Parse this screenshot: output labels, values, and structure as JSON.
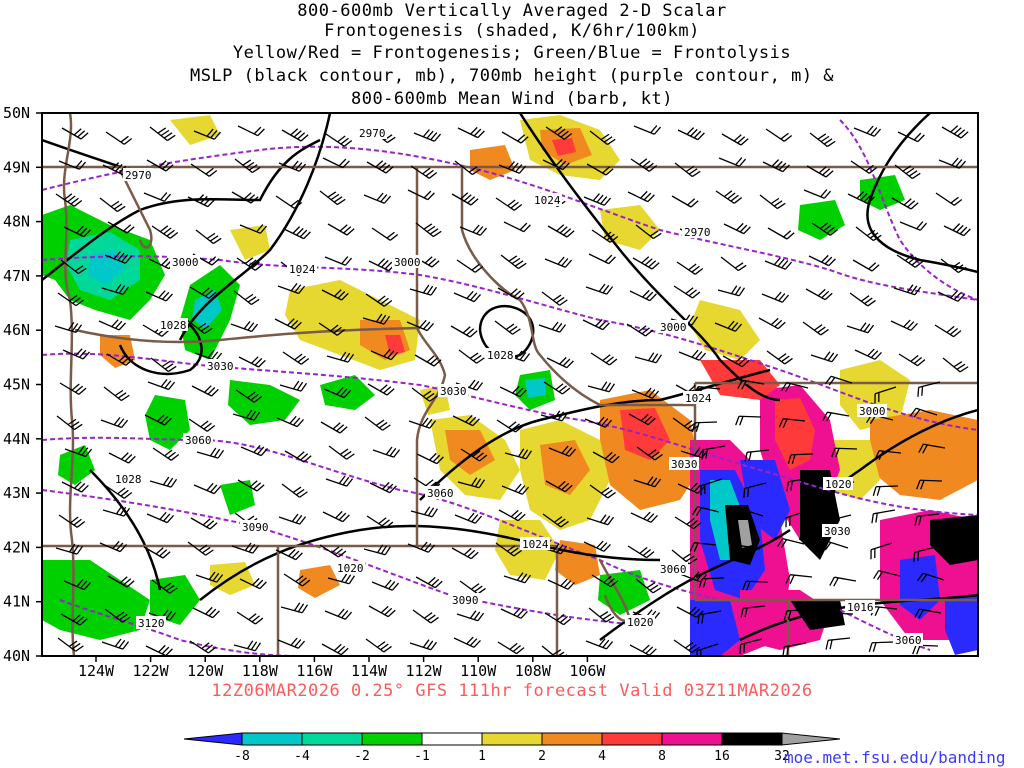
{
  "title_lines": [
    "800-600mb Vertically Averaged 2-D Scalar",
    "Frontogenesis (shaded, K/6hr/100km)",
    "Yellow/Red = Frontogenesis;  Green/Blue = Frontolysis",
    "MSLP (black contour, mb), 700mb height (purple contour, m) &",
    "800-600mb Mean Wind (barb, kt)"
  ],
  "subtitle": "12Z06MAR2026 0.25° GFS 111hr forecast Valid 03Z11MAR2026",
  "credit": "moe.met.fsu.edu/banding",
  "lat_labels": [
    "50N",
    "49N",
    "48N",
    "47N",
    "46N",
    "45N",
    "44N",
    "43N",
    "42N",
    "41N",
    "40N"
  ],
  "lon_labels": [
    "124W",
    "122W",
    "120W",
    "118W",
    "116W",
    "114W",
    "112W",
    "110W",
    "108W",
    "106W"
  ],
  "colorbar": {
    "ticks": [
      "-8",
      "-4",
      "-2",
      "-1",
      "1",
      "2",
      "4",
      "8",
      "16",
      "32"
    ],
    "colors": [
      "#2a2aff",
      "#00c8c8",
      "#00d89a",
      "#00d000",
      "#ffffff",
      "#e6d830",
      "#f08a20",
      "#ff3a3a",
      "#ee1090",
      "#000000",
      "#a0a0a0"
    ]
  },
  "mslp_labels": [
    "1024",
    "1028",
    "1024",
    "1028",
    "1024",
    "1028",
    "1024",
    "1020",
    "1024",
    "1020",
    "1020",
    "1016"
  ],
  "height_labels": [
    "2970",
    "2970",
    "2970",
    "3000",
    "3000",
    "3000",
    "3030",
    "3030",
    "3000",
    "3060",
    "3030",
    "3060",
    "3090",
    "3060",
    "3090",
    "3120",
    "3030",
    "3060",
    "3060"
  ],
  "colors": {
    "mslp": "#000000",
    "height": "#9a22cc",
    "border": "#7a5a48",
    "frame": "#000000"
  }
}
